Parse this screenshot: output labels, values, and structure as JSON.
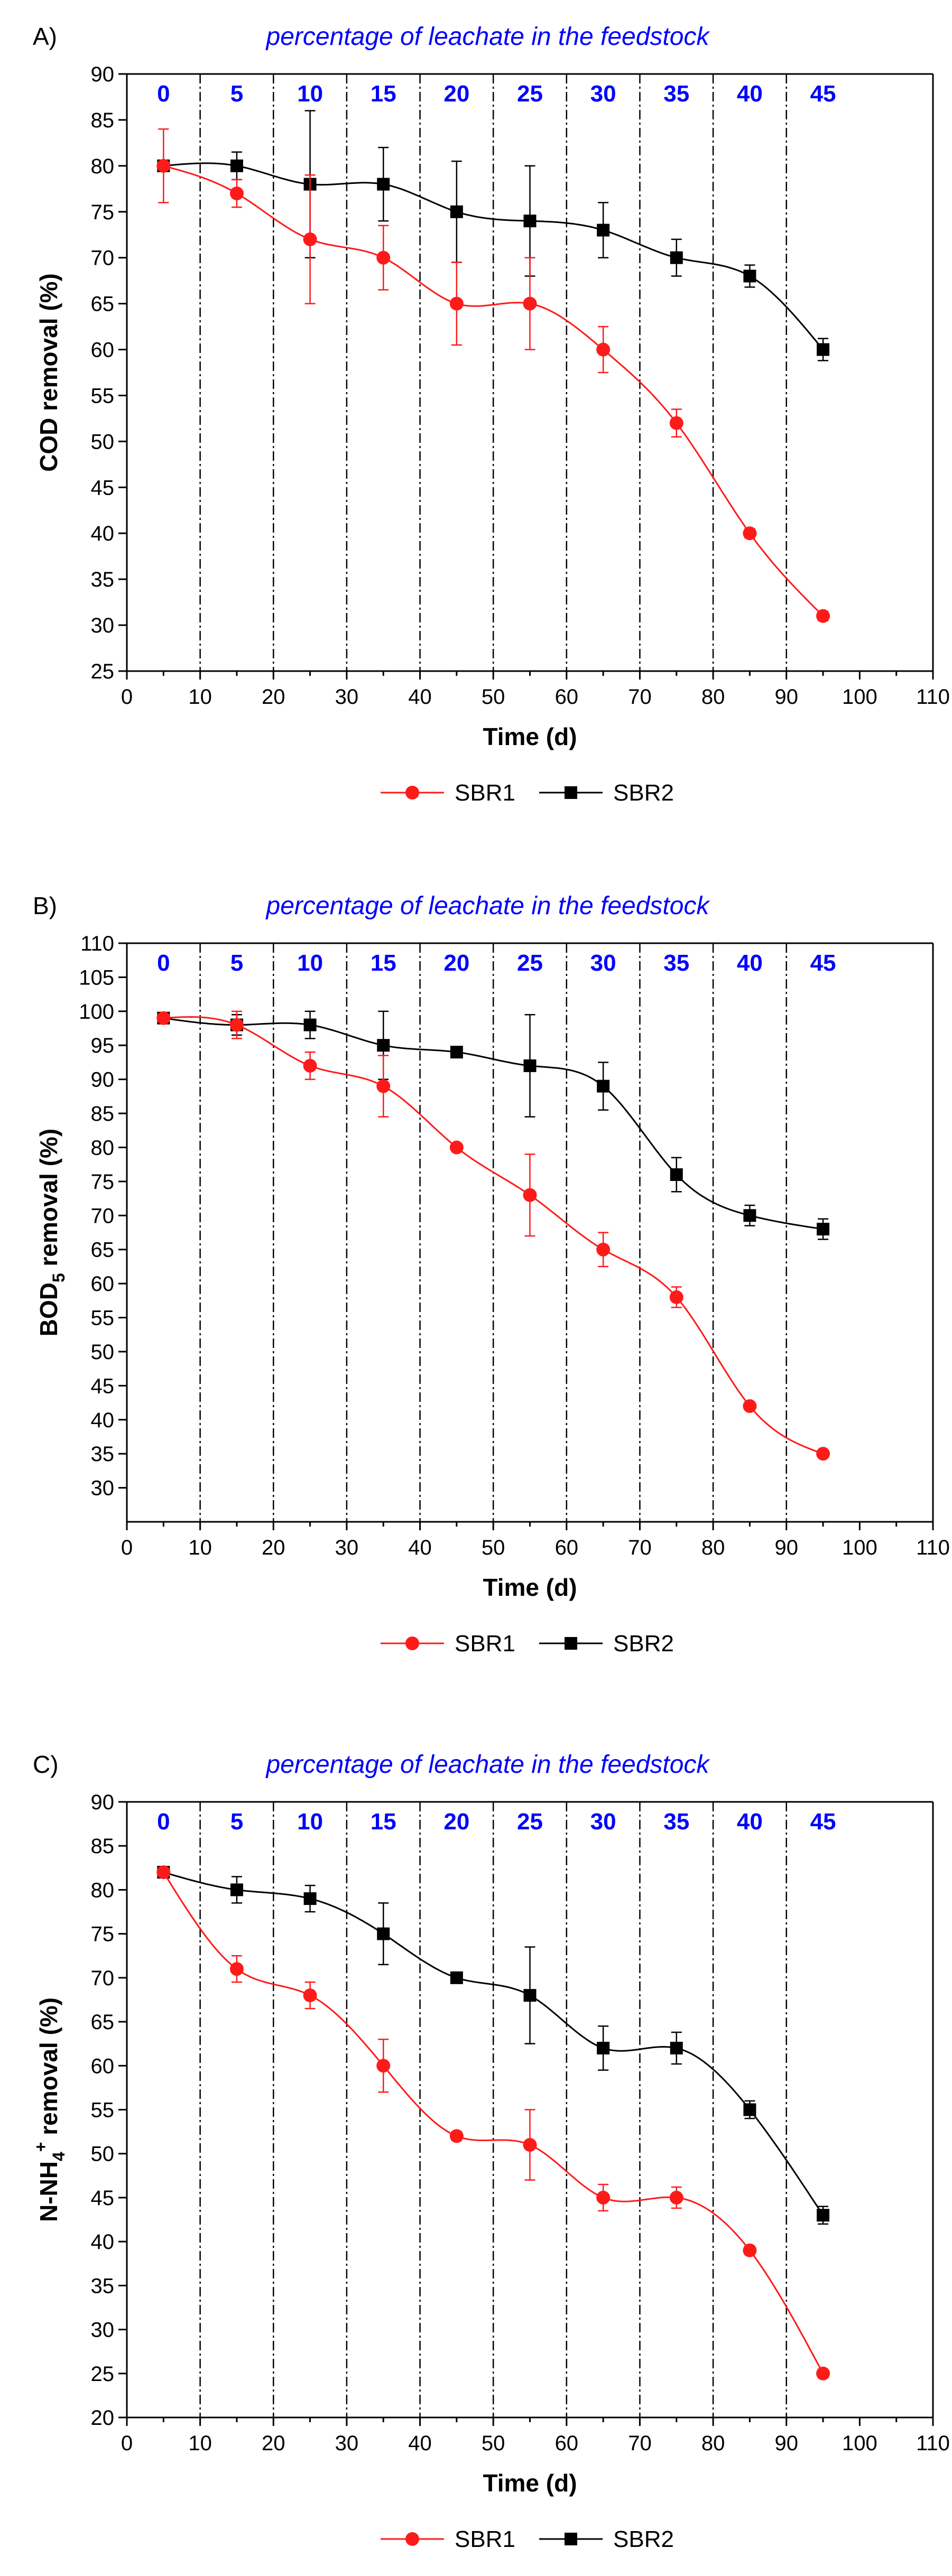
{
  "colors": {
    "sbr1": "#ff1a1a",
    "sbr2": "#000000",
    "annotation": "#0000ff"
  },
  "chart_data": [
    {
      "type": "line",
      "panel_label": "A)",
      "title": "percentage of leachate in the feedstock",
      "xlabel": "Time (d)",
      "ylabel": "COD removal (%)",
      "ylabel_parts": {
        "pre": "COD removal (%)",
        "sub": "",
        "sup": "",
        "post": ""
      },
      "xlim": [
        0,
        110
      ],
      "ylim": [
        25,
        90
      ],
      "xticks": [
        0,
        10,
        20,
        30,
        40,
        50,
        60,
        70,
        80,
        90,
        100,
        110
      ],
      "xtick_labels": [
        "0",
        "10",
        "20",
        "30",
        "40",
        "50",
        "60",
        "70",
        "80",
        "90",
        "100",
        "110"
      ],
      "yticks": [
        25,
        30,
        35,
        40,
        45,
        50,
        55,
        60,
        65,
        70,
        75,
        80,
        85,
        90
      ],
      "ytick_labels": [
        "25",
        "30",
        "35",
        "40",
        "45",
        "50",
        "55",
        "60",
        "65",
        "70",
        "75",
        "80",
        "85",
        "90"
      ],
      "dividers": [
        10,
        20,
        30,
        40,
        50,
        60,
        70,
        80,
        90
      ],
      "percentages": [
        "0",
        "5",
        "10",
        "15",
        "20",
        "25",
        "30",
        "35",
        "40",
        "45"
      ],
      "legend": [
        "SBR1",
        "SBR2"
      ],
      "series": [
        {
          "name": "SBR1",
          "marker": "circle",
          "x": [
            5,
            15,
            25,
            35,
            45,
            55,
            65,
            75,
            85,
            95
          ],
          "y": [
            80,
            77,
            72,
            70,
            65,
            65,
            60,
            52,
            40,
            31
          ],
          "err": [
            4,
            1.5,
            7,
            3.5,
            4.5,
            5,
            2.5,
            1.5,
            0.5,
            0.5
          ]
        },
        {
          "name": "SBR2",
          "marker": "square",
          "x": [
            5,
            15,
            25,
            35,
            45,
            55,
            65,
            75,
            85,
            95
          ],
          "y": [
            80,
            80,
            78,
            78,
            75,
            74,
            73,
            70,
            68,
            60
          ],
          "err": [
            0.5,
            1.5,
            8,
            4,
            5.5,
            6,
            3,
            2,
            1.2,
            1.2
          ]
        }
      ]
    },
    {
      "type": "line",
      "panel_label": "B)",
      "title": "percentage of leachate in the feedstock",
      "xlabel": "Time (d)",
      "ylabel": "BOD5 removal (%)",
      "ylabel_parts": {
        "pre": "BOD",
        "sub": "5",
        "sup": "",
        "post": " removal (%)"
      },
      "xlim": [
        0,
        110
      ],
      "ylim": [
        25,
        110
      ],
      "xticks": [
        0,
        10,
        20,
        30,
        40,
        50,
        60,
        70,
        80,
        90,
        100,
        110
      ],
      "xtick_labels": [
        "0",
        "10",
        "20",
        "30",
        "40",
        "50",
        "60",
        "70",
        "80",
        "90",
        "100",
        "110"
      ],
      "yticks": [
        30,
        35,
        40,
        45,
        50,
        55,
        60,
        65,
        70,
        75,
        80,
        85,
        90,
        95,
        100,
        105,
        110
      ],
      "ytick_labels": [
        "30",
        "35",
        "40",
        "45",
        "50",
        "55",
        "60",
        "65",
        "70",
        "75",
        "80",
        "85",
        "90",
        "95",
        "100",
        "105",
        "110"
      ],
      "dividers": [
        10,
        20,
        30,
        40,
        50,
        60,
        70,
        80,
        90
      ],
      "percentages": [
        "0",
        "5",
        "10",
        "15",
        "20",
        "25",
        "30",
        "35",
        "40",
        "45"
      ],
      "legend": [
        "SBR1",
        "SBR2"
      ],
      "series": [
        {
          "name": "SBR1",
          "marker": "circle",
          "x": [
            5,
            15,
            25,
            35,
            45,
            55,
            65,
            75,
            85,
            95
          ],
          "y": [
            99,
            98,
            92,
            89,
            80,
            73,
            65,
            58,
            42,
            35
          ],
          "err": [
            0.5,
            2,
            2,
            4.5,
            0.5,
            6,
            2.5,
            1.5,
            0.5,
            0.5
          ]
        },
        {
          "name": "SBR2",
          "marker": "square",
          "x": [
            5,
            15,
            25,
            35,
            45,
            55,
            65,
            75,
            85,
            95
          ],
          "y": [
            99,
            98,
            98,
            95,
            94,
            92,
            89,
            76,
            70,
            68
          ],
          "err": [
            0.5,
            1.5,
            2,
            5,
            0.5,
            7.5,
            3.5,
            2.5,
            1.5,
            1.5
          ]
        }
      ]
    },
    {
      "type": "line",
      "panel_label": "C)",
      "title": "percentage of leachate in the feedstock",
      "xlabel": "Time (d)",
      "ylabel": "N-NH4+ removal (%)",
      "ylabel_parts": {
        "pre": "N-NH",
        "sub": "4",
        "sup": "+",
        "post": " removal (%)"
      },
      "xlim": [
        0,
        110
      ],
      "ylim": [
        20,
        90
      ],
      "xticks": [
        0,
        10,
        20,
        30,
        40,
        50,
        60,
        70,
        80,
        90,
        100,
        110
      ],
      "xtick_labels": [
        "0",
        "10",
        "20",
        "30",
        "40",
        "50",
        "60",
        "70",
        "80",
        "90",
        "100",
        "110"
      ],
      "yticks": [
        20,
        25,
        30,
        35,
        40,
        45,
        50,
        55,
        60,
        65,
        70,
        75,
        80,
        85,
        90
      ],
      "ytick_labels": [
        "20",
        "25",
        "30",
        "35",
        "40",
        "45",
        "50",
        "55",
        "60",
        "65",
        "70",
        "75",
        "80",
        "85",
        "90"
      ],
      "dividers": [
        10,
        20,
        30,
        40,
        50,
        60,
        70,
        80,
        90
      ],
      "percentages": [
        "0",
        "5",
        "10",
        "15",
        "20",
        "25",
        "30",
        "35",
        "40",
        "45"
      ],
      "legend": [
        "SBR1",
        "SBR2"
      ],
      "series": [
        {
          "name": "SBR1",
          "marker": "circle",
          "x": [
            5,
            15,
            25,
            35,
            45,
            55,
            65,
            75,
            85,
            95
          ],
          "y": [
            82,
            71,
            68,
            60,
            52,
            51,
            45,
            45,
            39,
            25
          ],
          "err": [
            0.5,
            1.5,
            1.5,
            3,
            0.5,
            4,
            1.5,
            1.2,
            0.5,
            0.5
          ]
        },
        {
          "name": "SBR2",
          "marker": "square",
          "x": [
            5,
            15,
            25,
            35,
            45,
            55,
            65,
            75,
            85,
            95
          ],
          "y": [
            82,
            80,
            79,
            75,
            70,
            68,
            62,
            62,
            55,
            43
          ],
          "err": [
            0.5,
            1.5,
            1.5,
            3.5,
            0.5,
            5.5,
            2.5,
            1.8,
            1,
            1
          ]
        }
      ]
    }
  ]
}
